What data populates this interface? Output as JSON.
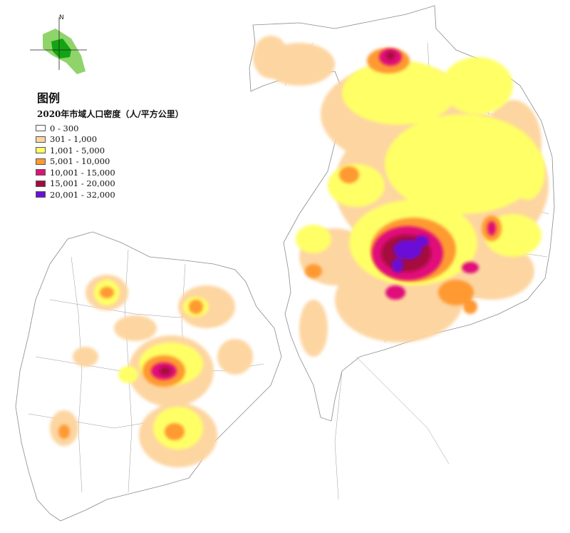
{
  "legend": {
    "title": "图例",
    "subtitle": "2020年市域人口密度（人/平方公里）",
    "classes": [
      {
        "label": "0 - 300",
        "color": "#ffffff"
      },
      {
        "label": "301 - 1,000",
        "color": "#fdd5a1"
      },
      {
        "label": "1,001 - 5,000",
        "color": "#ffff66"
      },
      {
        "label": "5,001 - 10,000",
        "color": "#ff9933"
      },
      {
        "label": "10,001 - 15,000",
        "color": "#e0107a"
      },
      {
        "label": "15,001 - 20,000",
        "color": "#a50b3c"
      },
      {
        "label": "20,001 - 32,000",
        "color": "#6a11d6"
      }
    ]
  },
  "north_arrow": {
    "letter": "N",
    "inset_colors": {
      "outer": "#8fd46a",
      "inner": "#13a413"
    }
  },
  "colors": {
    "boundary": "#8a8a8a",
    "background": "#ffffff"
  }
}
